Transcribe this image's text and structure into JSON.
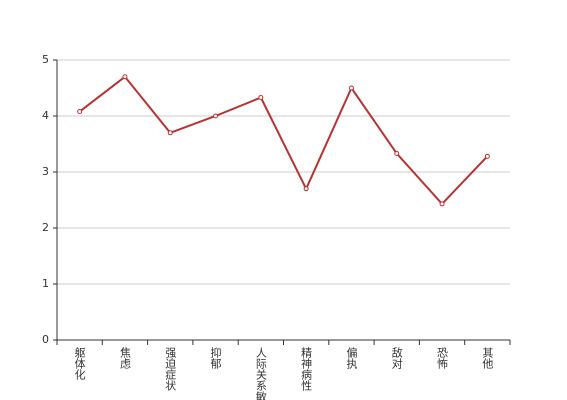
{
  "chart_data": {
    "type": "line",
    "categories": [
      "躯体化",
      "焦虑",
      "强迫症状",
      "抑郁",
      "人际关系敏感",
      "精神病性",
      "偏执",
      "敌对",
      "恐怖",
      "其他"
    ],
    "series": [
      {
        "color": "#b83232",
        "values": [
          4.08,
          4.7,
          3.7,
          4.0,
          4.33,
          2.7,
          4.5,
          3.33,
          2.43,
          3.28
        ]
      }
    ],
    "ylim": [
      0,
      5
    ],
    "yticks": [
      0,
      1,
      2,
      3,
      4,
      5
    ],
    "grid": true
  }
}
